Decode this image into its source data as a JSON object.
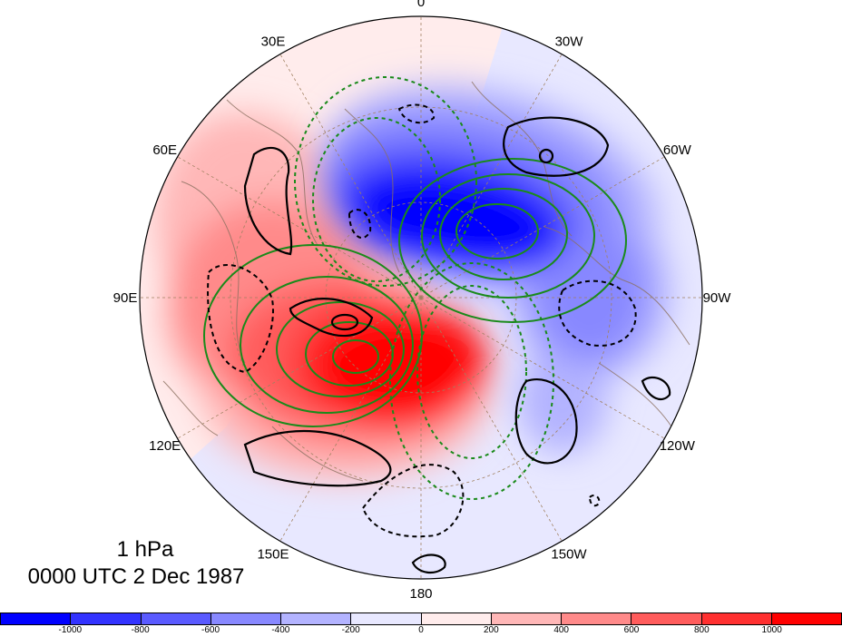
{
  "map": {
    "projection": "polar stereographic",
    "longitude_labels": [
      {
        "text": "0",
        "lon": 0
      },
      {
        "text": "30W",
        "lon": -30
      },
      {
        "text": "60W",
        "lon": -60
      },
      {
        "text": "90W",
        "lon": -90
      },
      {
        "text": "120W",
        "lon": -120
      },
      {
        "text": "150W",
        "lon": -150
      },
      {
        "text": "180",
        "lon": 180
      },
      {
        "text": "150E",
        "lon": 150
      },
      {
        "text": "120E",
        "lon": 120
      },
      {
        "text": "90E",
        "lon": 90
      },
      {
        "text": "60E",
        "lon": 60
      },
      {
        "text": "30E",
        "lon": 30
      }
    ],
    "contour_colors": {
      "black": "#000000",
      "green": "#1a8a1a"
    },
    "coast_color": "#8b7060",
    "grid_color": "#a08060"
  },
  "annotations": {
    "level": "1 hPa",
    "time": "0000 UTC 2 Dec 1987"
  },
  "colorbar": {
    "colors": [
      "#0000ff",
      "#3333ff",
      "#5a5aff",
      "#8888ff",
      "#b3b3ff",
      "#e8e8ff",
      "#ffecec",
      "#ffb7b7",
      "#ff8a8a",
      "#ff5c5c",
      "#ff3030",
      "#ff0000"
    ],
    "labels": [
      "-1000",
      "-800",
      "-600",
      "-400",
      "-200",
      "0",
      "200",
      "400",
      "600",
      "800",
      "1000"
    ]
  }
}
